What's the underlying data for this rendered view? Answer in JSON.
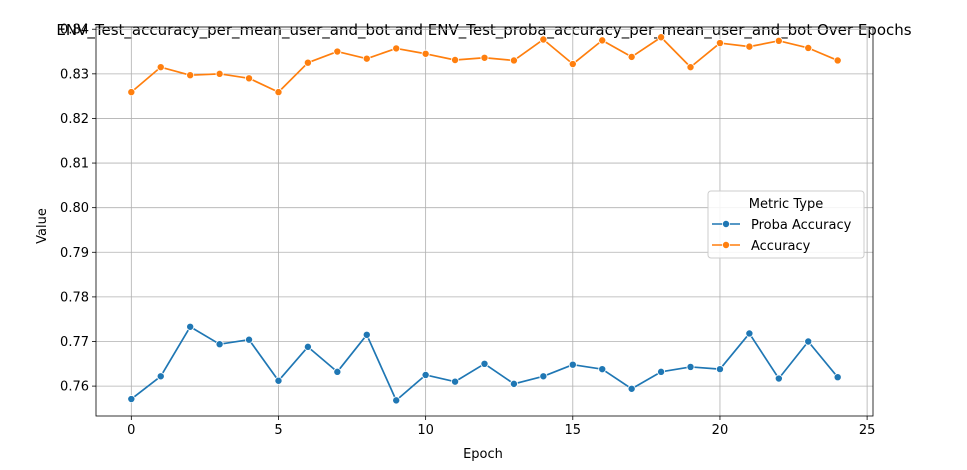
{
  "chart_data": {
    "type": "line",
    "title": "ENV_Test_accuracy_per_mean_user_and_bot and ENV_Test_proba_accuracy_per_mean_user_and_bot Over Epochs",
    "xlabel": "Epoch",
    "ylabel": "Value",
    "xlim": [
      -1.2,
      25.2
    ],
    "ylim": [
      0.7533,
      0.8405
    ],
    "xticks": [
      0,
      5,
      10,
      15,
      20,
      25
    ],
    "xtick_labels": [
      "0",
      "5",
      "10",
      "15",
      "20",
      "25"
    ],
    "yticks": [
      0.76,
      0.77,
      0.78,
      0.79,
      0.8,
      0.81,
      0.82,
      0.83,
      0.84
    ],
    "ytick_labels": [
      "0.76",
      "0.77",
      "0.78",
      "0.79",
      "0.80",
      "0.81",
      "0.82",
      "0.83",
      "0.84"
    ],
    "grid": true,
    "legend": {
      "title": "Metric Type",
      "position": "center-right"
    },
    "x": [
      0,
      1,
      2,
      3,
      4,
      5,
      6,
      7,
      8,
      9,
      10,
      11,
      12,
      13,
      14,
      15,
      16,
      17,
      18,
      19,
      20,
      21,
      22,
      23,
      24
    ],
    "series": [
      {
        "name": "Proba Accuracy",
        "color": "#1f77b4",
        "marker": "circle",
        "values": [
          0.7571,
          0.7622,
          0.7733,
          0.7694,
          0.7704,
          0.7612,
          0.7688,
          0.7632,
          0.7715,
          0.7568,
          0.7625,
          0.761,
          0.765,
          0.7605,
          0.7622,
          0.7648,
          0.7638,
          0.7594,
          0.7632,
          0.7643,
          0.7638,
          0.7718,
          0.7617,
          0.77,
          0.762
        ]
      },
      {
        "name": "Accuracy",
        "color": "#ff7f0e",
        "marker": "circle",
        "values": [
          0.8259,
          0.8315,
          0.8297,
          0.83,
          0.829,
          0.8259,
          0.8325,
          0.835,
          0.8334,
          0.8357,
          0.8345,
          0.8331,
          0.8336,
          0.833,
          0.8377,
          0.8322,
          0.8375,
          0.8338,
          0.8382,
          0.8315,
          0.8369,
          0.8361,
          0.8374,
          0.8358,
          0.833
        ]
      }
    ]
  }
}
